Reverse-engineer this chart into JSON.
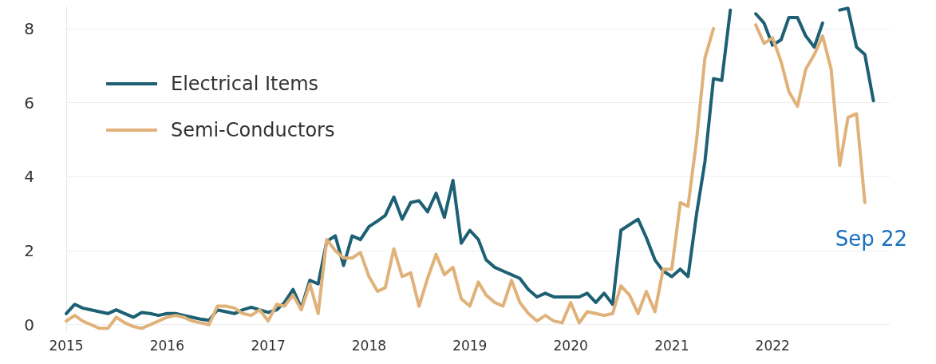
{
  "chart_data": {
    "type": "line",
    "x": [
      "2015-01",
      "2015-02",
      "2015-03",
      "2015-04",
      "2015-05",
      "2015-06",
      "2015-07",
      "2015-08",
      "2015-09",
      "2015-10",
      "2015-11",
      "2015-12",
      "2016-01",
      "2016-02",
      "2016-03",
      "2016-04",
      "2016-05",
      "2016-06",
      "2016-07",
      "2016-08",
      "2016-09",
      "2016-10",
      "2016-11",
      "2016-12",
      "2017-01",
      "2017-02",
      "2017-03",
      "2017-04",
      "2017-05",
      "2017-06",
      "2017-07",
      "2017-08",
      "2017-09",
      "2017-10",
      "2017-11",
      "2017-12",
      "2018-01",
      "2018-02",
      "2018-03",
      "2018-04",
      "2018-05",
      "2018-06",
      "2018-07",
      "2018-08",
      "2018-09",
      "2018-10",
      "2018-11",
      "2018-12",
      "2019-01",
      "2019-02",
      "2019-03",
      "2019-04",
      "2019-05",
      "2019-06",
      "2019-07",
      "2019-08",
      "2019-09",
      "2019-10",
      "2019-11",
      "2019-12",
      "2020-01",
      "2020-02",
      "2020-03",
      "2020-04",
      "2020-05",
      "2020-06",
      "2020-07",
      "2020-08",
      "2020-09",
      "2020-10",
      "2020-11",
      "2020-12",
      "2021-01",
      "2021-02",
      "2021-03",
      "2021-04",
      "2021-05",
      "2021-06",
      "2021-07",
      "2021-08",
      "2021-09",
      "2021-10",
      "2021-11",
      "2021-12",
      "2022-01",
      "2022-02",
      "2022-03",
      "2022-04",
      "2022-05",
      "2022-06",
      "2022-07",
      "2022-08",
      "2022-09",
      "2022-10",
      "2022-11",
      "2022-12",
      "2023-01"
    ],
    "series": [
      {
        "name": "Electrical Items",
        "color": "#1d5f73",
        "values": [
          0.3,
          0.55,
          0.45,
          0.4,
          0.35,
          0.3,
          0.4,
          0.3,
          0.2,
          0.33,
          0.3,
          0.25,
          0.3,
          0.3,
          0.25,
          0.2,
          0.15,
          0.12,
          0.4,
          0.35,
          0.3,
          0.4,
          0.47,
          0.4,
          0.33,
          0.4,
          0.6,
          0.95,
          0.45,
          1.2,
          1.1,
          2.25,
          2.4,
          1.6,
          2.4,
          2.3,
          2.65,
          2.8,
          2.95,
          3.45,
          2.85,
          3.3,
          3.35,
          3.05,
          3.55,
          2.9,
          3.9,
          2.2,
          2.55,
          2.3,
          1.75,
          1.55,
          1.45,
          1.35,
          1.25,
          0.95,
          0.75,
          0.85,
          0.75,
          0.75,
          0.75,
          0.75,
          0.85,
          0.6,
          0.85,
          0.55,
          2.55,
          2.7,
          2.85,
          2.35,
          1.75,
          1.45,
          1.3,
          1.5,
          1.3,
          3.0,
          4.4,
          6.65,
          6.6,
          8.5,
          null,
          null,
          8.4,
          8.15,
          7.55,
          7.7,
          8.3,
          8.3,
          7.8,
          7.5,
          8.15,
          null,
          8.5,
          8.55,
          7.5,
          7.3,
          6.05
        ]
      },
      {
        "name": "Semi-Conductors",
        "color": "#e0b27a",
        "values": [
          0.1,
          0.25,
          0.1,
          0.0,
          -0.1,
          -0.1,
          0.2,
          0.05,
          -0.05,
          -0.1,
          0.0,
          0.1,
          0.2,
          0.25,
          0.2,
          0.1,
          0.05,
          0.0,
          0.5,
          0.5,
          0.45,
          0.3,
          0.25,
          0.4,
          0.1,
          0.55,
          0.5,
          0.8,
          0.4,
          1.1,
          0.3,
          2.3,
          2.0,
          1.8,
          1.8,
          1.95,
          1.3,
          0.9,
          1.0,
          2.05,
          1.3,
          1.4,
          0.5,
          1.25,
          1.9,
          1.35,
          1.55,
          0.7,
          0.5,
          1.15,
          0.8,
          0.6,
          0.5,
          1.2,
          0.6,
          0.3,
          0.1,
          0.25,
          0.1,
          0.05,
          0.6,
          0.05,
          0.35,
          0.3,
          0.25,
          0.3,
          1.05,
          0.8,
          0.3,
          0.9,
          0.35,
          1.5,
          1.5,
          3.3,
          3.2,
          5.0,
          7.2,
          8.0,
          null,
          null,
          null,
          null,
          8.1,
          7.6,
          7.75,
          7.1,
          6.3,
          5.9,
          6.9,
          7.3,
          7.8,
          6.9,
          4.3,
          5.6,
          5.7,
          3.3,
          null
        ]
      }
    ],
    "xlim": [
      "2015-01",
      "2023-03"
    ],
    "xticks": [
      {
        "value": "2015",
        "label": "2015"
      },
      {
        "value": "2016",
        "label": "2016"
      },
      {
        "value": "2017",
        "label": "2017"
      },
      {
        "value": "2018",
        "label": "2018"
      },
      {
        "value": "2019",
        "label": "2019"
      },
      {
        "value": "2020",
        "label": "2020"
      },
      {
        "value": "2021",
        "label": "2021"
      },
      {
        "value": "2022",
        "label": "2022"
      }
    ],
    "ylim": [
      -0.2,
      8.6
    ],
    "yticks": [
      0,
      2,
      4,
      6,
      8
    ],
    "grid": "y",
    "legend": "top left",
    "marker": "none",
    "line_style": "solid",
    "annotations": [
      "Sep 22"
    ]
  }
}
